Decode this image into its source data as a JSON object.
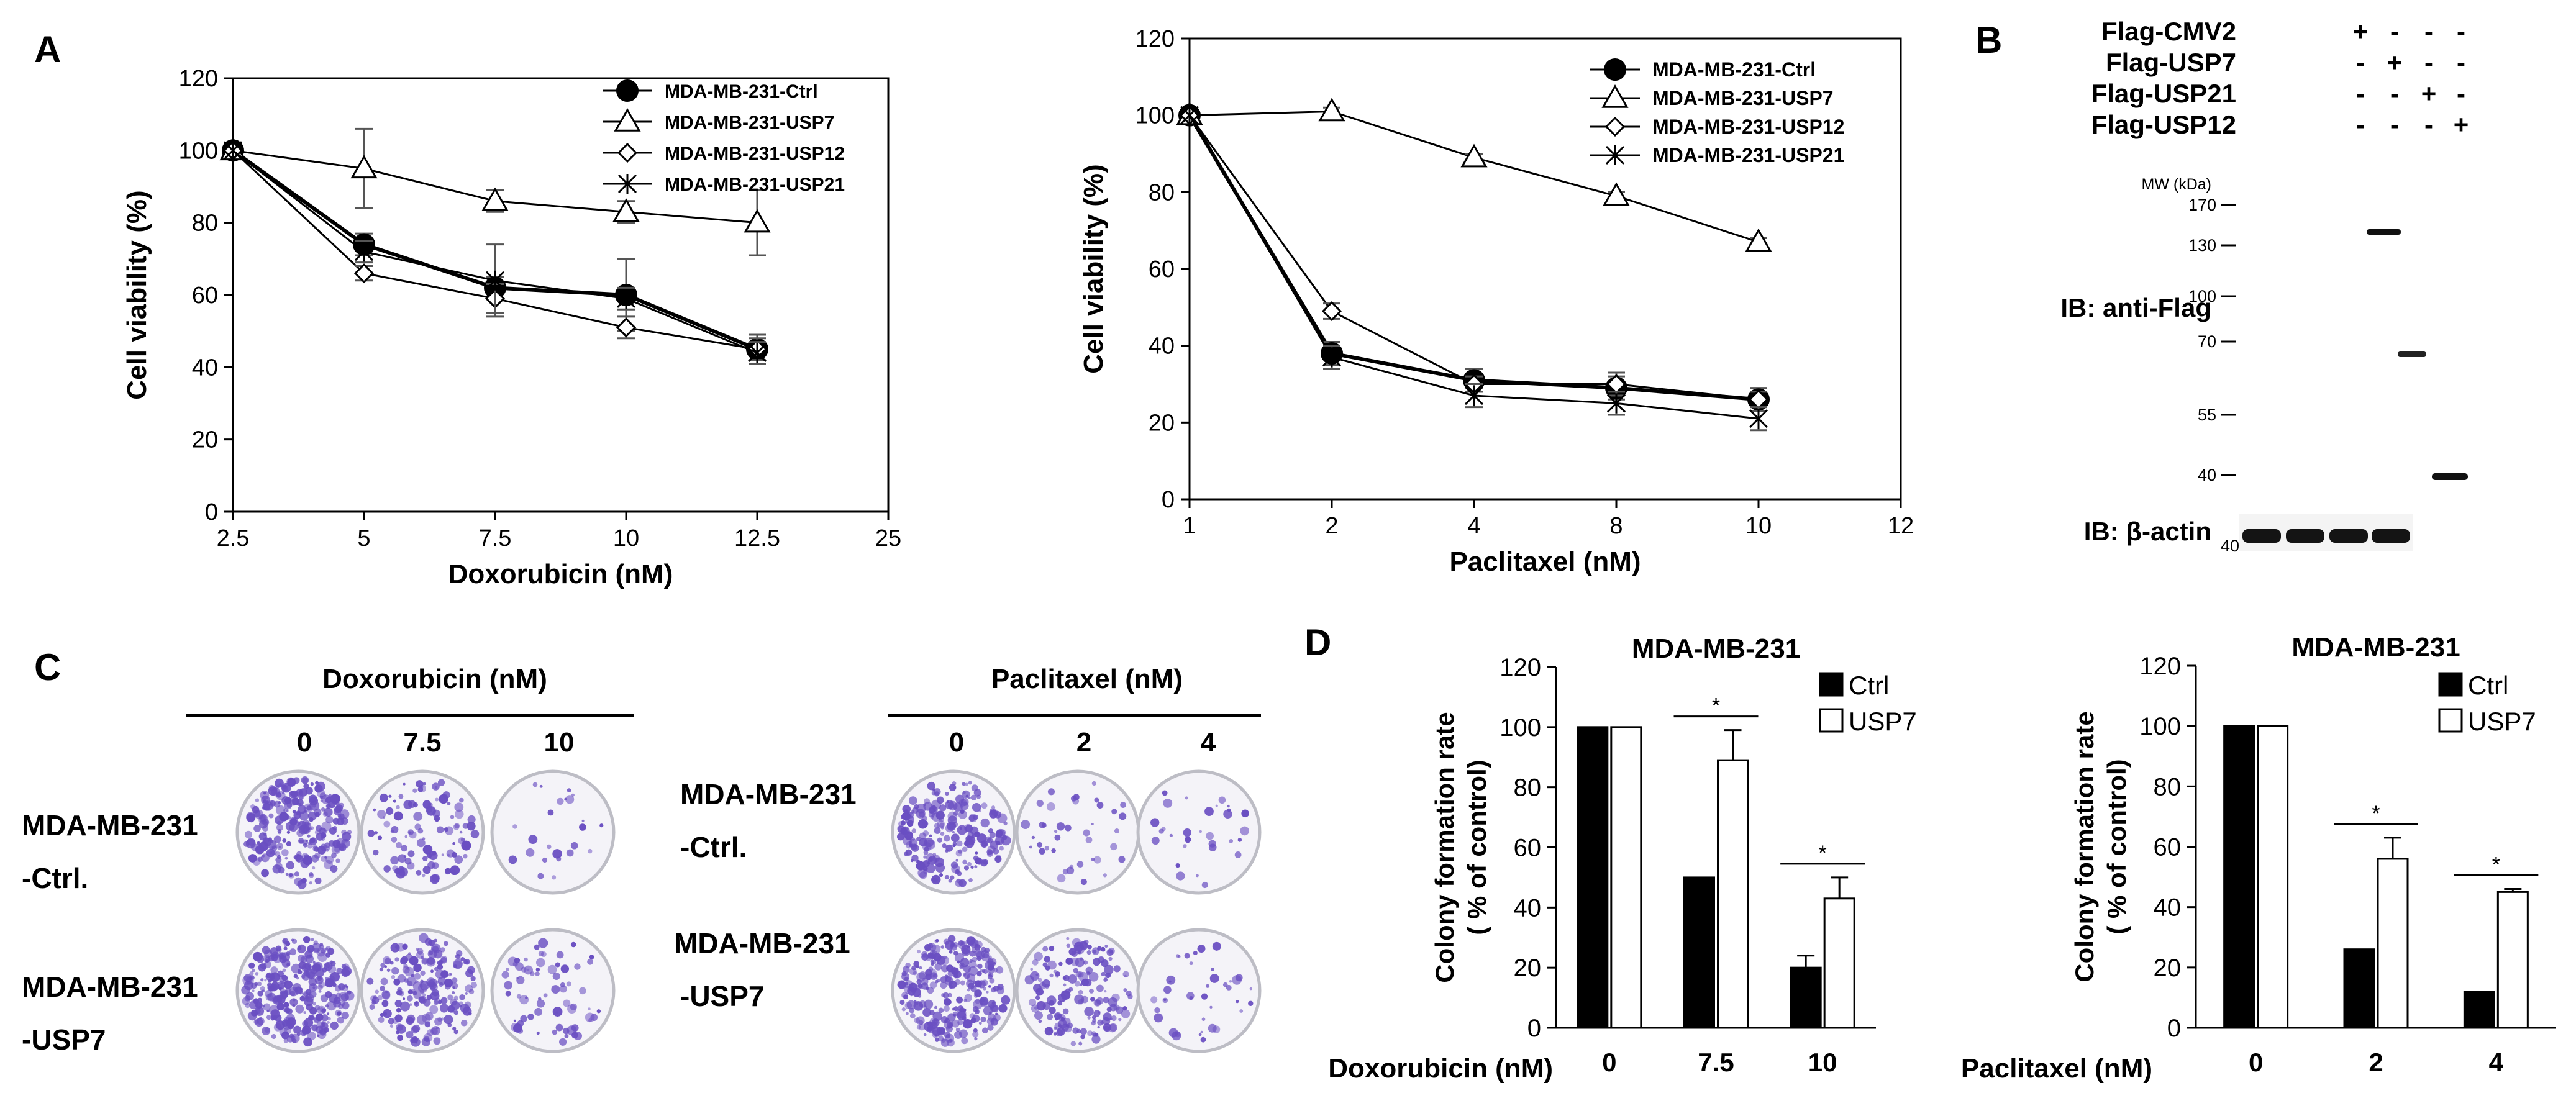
{
  "panel_labels": {
    "A": "A",
    "B": "B",
    "C": "C",
    "D": "D"
  },
  "chart_data": [
    {
      "id": "A1",
      "type": "line",
      "xlabel": "Doxorubicin (nM)",
      "ylabel": "Cell viability (%)",
      "ylim": [
        0,
        120
      ],
      "x_ticks": [
        "2.5",
        "5",
        "7.5",
        "10",
        "12.5",
        "25"
      ],
      "y_ticks": [
        0,
        20,
        40,
        60,
        80,
        100,
        120
      ],
      "legend_position": "top-right",
      "series": [
        {
          "name": "MDA-MB-231-Ctrl",
          "marker": "filled-circle",
          "values": [
            100,
            74,
            62,
            60,
            45
          ],
          "errors": [
            0,
            3,
            3,
            10,
            4
          ]
        },
        {
          "name": "MDA-MB-231-USP7",
          "marker": "open-triangle",
          "values": [
            100,
            95,
            86,
            83,
            80
          ],
          "errors": [
            0,
            11,
            3,
            3,
            9
          ]
        },
        {
          "name": "MDA-MB-231-USP12",
          "marker": "open-diamond",
          "values": [
            100,
            66,
            59,
            51,
            45
          ],
          "errors": [
            0,
            2,
            4,
            3,
            3
          ]
        },
        {
          "name": "MDA-MB-231-USP21",
          "marker": "asterisk",
          "values": [
            100,
            72,
            64,
            59,
            44
          ],
          "errors": [
            0,
            3,
            10,
            3,
            3
          ]
        }
      ]
    },
    {
      "id": "A2",
      "type": "line",
      "xlabel": "Paclitaxel (nM)",
      "ylabel": "Cell viability (%)",
      "ylim": [
        0,
        120
      ],
      "x_ticks": [
        "1",
        "2",
        "4",
        "8",
        "10",
        "12"
      ],
      "y_ticks": [
        0,
        20,
        40,
        60,
        80,
        100,
        120
      ],
      "legend_position": "top-right",
      "series": [
        {
          "name": "MDA-MB-231-Ctrl",
          "marker": "filled-circle",
          "values": [
            100,
            38,
            31,
            29,
            26
          ],
          "errors": [
            0,
            3,
            3,
            3,
            3
          ]
        },
        {
          "name": "MDA-MB-231-USP7",
          "marker": "open-triangle",
          "values": [
            100,
            101,
            89,
            79,
            67
          ],
          "errors": [
            0,
            1,
            1,
            1,
            1
          ]
        },
        {
          "name": "MDA-MB-231-USP12",
          "marker": "open-diamond",
          "values": [
            100,
            49,
            30,
            30,
            26
          ],
          "errors": [
            0,
            2,
            2,
            3,
            2
          ]
        },
        {
          "name": "MDA-MB-231-USP21",
          "marker": "asterisk",
          "values": [
            100,
            37,
            27,
            25,
            21
          ],
          "errors": [
            0,
            3,
            3,
            3,
            3
          ]
        }
      ]
    },
    {
      "id": "D1",
      "type": "bar",
      "title": "MDA-MB-231",
      "xlabel": "Doxorubicin (nM)",
      "ylabel": "Colony formation rate\n( % of control)",
      "ylim": [
        0,
        120
      ],
      "categories": [
        "0",
        "7.5",
        "10"
      ],
      "y_ticks": [
        0,
        20,
        40,
        60,
        80,
        100,
        120
      ],
      "significance": [
        "",
        "*",
        "*"
      ],
      "series": [
        {
          "name": "Ctrl",
          "fill": "#000000",
          "values": [
            100,
            50,
            20
          ],
          "errors": [
            0,
            0,
            4
          ]
        },
        {
          "name": "USP7",
          "fill": "#ffffff",
          "values": [
            100,
            89,
            43
          ],
          "errors": [
            0,
            10,
            7
          ]
        }
      ]
    },
    {
      "id": "D2",
      "type": "bar",
      "title": "MDA-MB-231",
      "xlabel": "Paclitaxel (nM)",
      "ylabel": "Colony formation rate\n( % of control)",
      "ylim": [
        0,
        120
      ],
      "categories": [
        "0",
        "2",
        "4"
      ],
      "y_ticks": [
        0,
        20,
        40,
        60,
        80,
        100,
        120
      ],
      "significance": [
        "",
        "*",
        "*"
      ],
      "series": [
        {
          "name": "Ctrl",
          "fill": "#000000",
          "values": [
            100,
            26,
            12
          ],
          "errors": [
            0,
            0,
            0
          ]
        },
        {
          "name": "USP7",
          "fill": "#ffffff",
          "values": [
            100,
            56,
            45
          ],
          "errors": [
            0,
            7,
            1
          ]
        }
      ]
    }
  ],
  "blot": {
    "constructs": [
      {
        "label": "Flag-CMV2",
        "signs": [
          "+",
          "-",
          "-",
          "-"
        ]
      },
      {
        "label": "Flag-USP7",
        "signs": [
          "-",
          "+",
          "-",
          "-"
        ]
      },
      {
        "label": "Flag-USP21",
        "signs": [
          "-",
          "-",
          "+",
          "-"
        ]
      },
      {
        "label": "Flag-USP12",
        "signs": [
          "-",
          "-",
          "-",
          "+"
        ]
      }
    ],
    "mw_header": "MW (kDa)",
    "mw_markers": [
      "170",
      "130",
      "100",
      "70",
      "55",
      "40"
    ],
    "actin_marker": "40",
    "label_flag": "IB: anti-Flag",
    "label_actin": "IB: β-actin"
  },
  "colony": {
    "dox_header": "Doxorubicin (nM)",
    "dox_doses": [
      "0",
      "7.5",
      "10"
    ],
    "pac_header": "Paclitaxel (nM)",
    "pac_doses": [
      "0",
      "2",
      "4"
    ],
    "row_ctrl": [
      "MDA-MB-231",
      "-Ctrl."
    ],
    "row_usp7": [
      "MDA-MB-231",
      "-USP7"
    ],
    "dish_color": "#6a4fc2"
  }
}
